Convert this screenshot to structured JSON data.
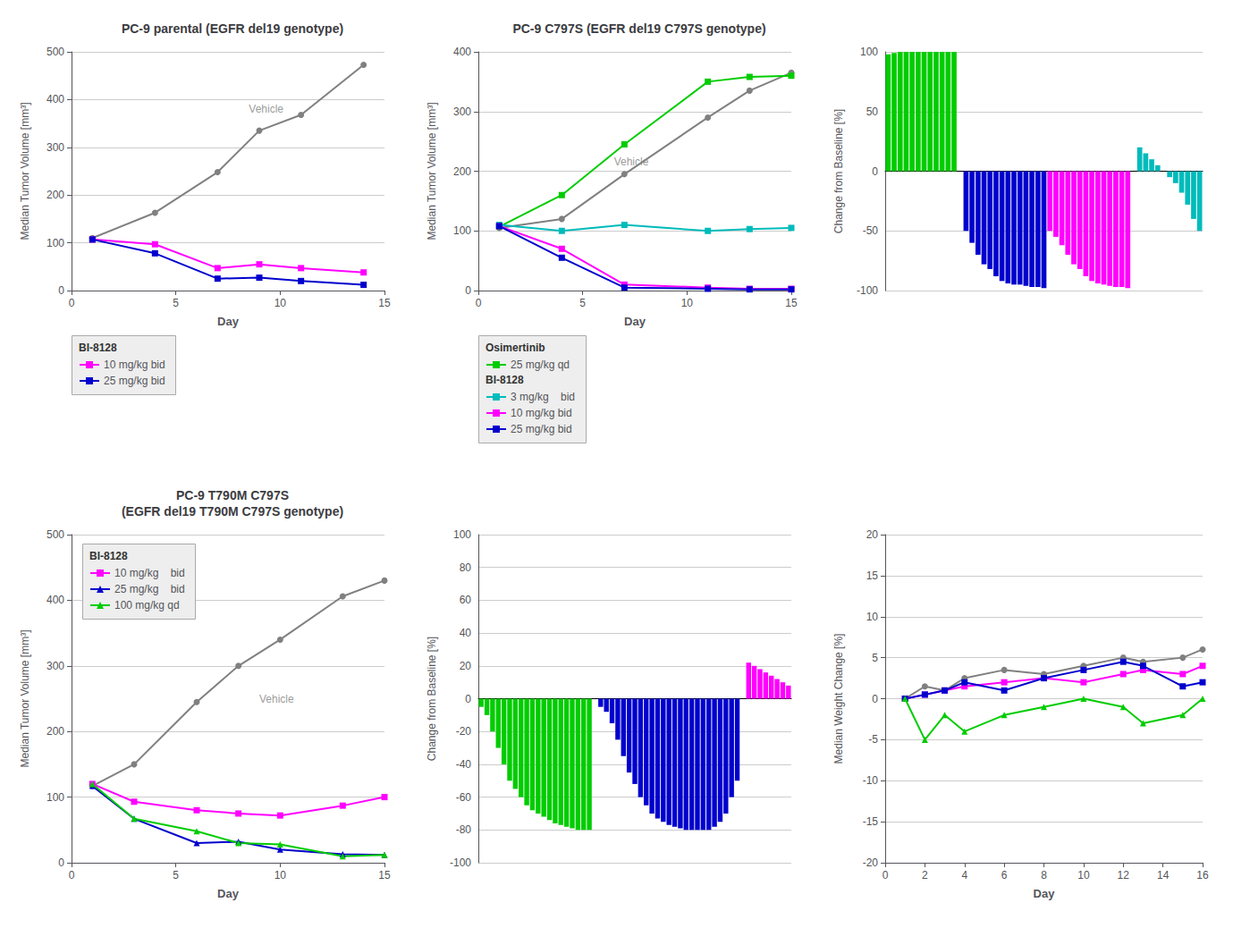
{
  "chart_data": [
    {
      "type": "line",
      "title": "PC-9 parental (EGFR del19 genotype)",
      "x_label": "Day",
      "y_label": "Median Tumor Volume [mm³]",
      "x": [
        1,
        4,
        7,
        9,
        11,
        14
      ],
      "series": [
        {
          "color": "#808080",
          "marker": "circle",
          "values": [
            110,
            163,
            248,
            335,
            368,
            473
          ]
        },
        {
          "name": "10 mg/kg bid",
          "legend_group": "BI-8128",
          "color": "#FF00FF",
          "marker": "square",
          "values": [
            107,
            97,
            47,
            55,
            47,
            38
          ]
        },
        {
          "name": "25 mg/kg bid",
          "legend_group": "BI-8128",
          "color": "#0000CD",
          "marker": "square",
          "values": [
            107,
            78,
            25,
            27,
            20,
            12
          ]
        }
      ],
      "annotations": [
        {
          "text": "Vehicle",
          "x": 8.5,
          "y": 380,
          "color": "#808080"
        }
      ],
      "xlim": [
        0,
        15
      ],
      "xticks": [
        0,
        5,
        10,
        15
      ],
      "ylim": [
        0,
        500
      ],
      "yticks": [
        0,
        100,
        200,
        300,
        400,
        500
      ],
      "grid": true,
      "legend": "below"
    },
    {
      "type": "line",
      "title": "PC-9 C797S (EGFR del19 C797S genotype)",
      "x_label": "Day",
      "y_label": "Median Tumor Volume [mm³]",
      "x": [
        1,
        4,
        7,
        11,
        13,
        15
      ],
      "series": [
        {
          "color": "#808080",
          "marker": "circle",
          "values": [
            105,
            120,
            195,
            290,
            335,
            365
          ]
        },
        {
          "name": "25 mg/kg qd",
          "legend_group": "Osimertinib",
          "color": "#00CC00",
          "marker": "square",
          "values": [
            107,
            160,
            245,
            350,
            358,
            360
          ]
        },
        {
          "name": "3 mg/kg    bid",
          "legend_group": "BI-8128",
          "color": "#00BBBB",
          "marker": "square",
          "values": [
            110,
            100,
            110,
            100,
            103,
            105
          ]
        },
        {
          "name": "10 mg/kg bid",
          "legend_group": "BI-8128",
          "color": "#FF00FF",
          "marker": "square",
          "values": [
            108,
            70,
            10,
            5,
            3,
            3
          ]
        },
        {
          "name": "25 mg/kg bid",
          "legend_group": "BI-8128",
          "color": "#0000CD",
          "marker": "square",
          "values": [
            108,
            55,
            5,
            3,
            2,
            2
          ]
        }
      ],
      "annotations": [
        {
          "text": "Vehicle",
          "x": 6.5,
          "y": 215,
          "color": "#808080"
        }
      ],
      "xlim": [
        0,
        15
      ],
      "xticks": [
        0,
        5,
        10,
        15
      ],
      "ylim": [
        0,
        400
      ],
      "yticks": [
        0,
        100,
        200,
        300,
        400
      ],
      "grid": true,
      "legend": "below"
    },
    {
      "type": "bar",
      "y_label": "Change from Baseline [%]",
      "series": [
        {
          "color": "#00CC00",
          "values": [
            98,
            99,
            100,
            100,
            100,
            100,
            100,
            100,
            100,
            100,
            100,
            100
          ]
        },
        {
          "color": "#0000CD",
          "values": [
            -50,
            -60,
            -70,
            -78,
            -82,
            -88,
            -92,
            -94,
            -95,
            -95,
            -96,
            -97,
            -97,
            -98
          ]
        },
        {
          "color": "#FF00FF",
          "values": [
            -50,
            -55,
            -62,
            -70,
            -78,
            -82,
            -88,
            -92,
            -94,
            -95,
            -96,
            -97,
            -97,
            -98
          ]
        },
        {
          "color": "#00BBBB",
          "values": [
            20,
            15,
            10,
            5,
            0,
            -5,
            -10,
            -18,
            -28,
            -40,
            -50
          ]
        }
      ],
      "ylim": [
        -100,
        100
      ],
      "yticks": [
        -100,
        -50,
        0,
        50,
        100
      ],
      "grid": true,
      "tick_labels": "y"
    },
    {
      "type": "line",
      "title": "PC-9 T790M C797S\n(EGFR del19 T790M C797S genotype)",
      "x_label": "Day",
      "y_label": "Median Tumor Volume [mm³]",
      "x": [
        1,
        3,
        6,
        8,
        10,
        13,
        15
      ],
      "series": [
        {
          "color": "#808080",
          "marker": "circle",
          "values": [
            117,
            150,
            245,
            300,
            340,
            406,
            430
          ]
        },
        {
          "name": "10 mg/kg    bid",
          "legend_group": "BI-8128",
          "color": "#FF00FF",
          "marker": "square",
          "values": [
            120,
            93,
            80,
            75,
            72,
            87,
            100
          ]
        },
        {
          "name": "25 mg/kg    bid",
          "legend_group": "BI-8128",
          "color": "#0000CD",
          "marker": "triangle",
          "values": [
            117,
            67,
            30,
            32,
            20,
            13,
            12
          ]
        },
        {
          "name": "100 mg/kg qd",
          "legend_group": "BI-8128",
          "color": "#00CC00",
          "marker": "triangle",
          "values": [
            120,
            67,
            48,
            30,
            28,
            10,
            12
          ]
        }
      ],
      "annotations": [
        {
          "text": "Vehicle",
          "x": 9,
          "y": 250,
          "color": "#808080"
        }
      ],
      "xlim": [
        0,
        15
      ],
      "xticks": [
        0,
        5,
        10,
        15
      ],
      "ylim": [
        0,
        500
      ],
      "yticks": [
        0,
        100,
        200,
        300,
        400,
        500
      ],
      "grid": true,
      "legend": "upper left"
    },
    {
      "type": "bar",
      "y_label": "Change from Baseline [%]",
      "series": [
        {
          "color": "#00CC00",
          "values": [
            -5,
            -10,
            -20,
            -30,
            -40,
            -50,
            -55,
            -60,
            -65,
            -68,
            -70,
            -72,
            -74,
            -76,
            -77,
            -78,
            -79,
            -80,
            -80,
            -80
          ]
        },
        {
          "color": "#0000CD",
          "values": [
            -5,
            -8,
            -15,
            -25,
            -35,
            -45,
            -52,
            -60,
            -65,
            -70,
            -73,
            -75,
            -77,
            -78,
            -79,
            -80,
            -80,
            -80,
            -80,
            -80,
            -78,
            -75,
            -70,
            -60,
            -50
          ]
        },
        {
          "color": "#FF00FF",
          "values": [
            22,
            20,
            18,
            16,
            14,
            12,
            10,
            8
          ]
        }
      ],
      "ylim": [
        -100,
        100
      ],
      "yticks": [
        -100,
        -80,
        -60,
        -40,
        -20,
        0,
        20,
        40,
        60,
        80,
        100
      ],
      "grid": true,
      "tick_labels": "y"
    },
    {
      "type": "line",
      "x_label": "Day",
      "y_label": "Median Weight Change [%]",
      "x": [
        1,
        2,
        3,
        4,
        6,
        8,
        10,
        12,
        13,
        15,
        16
      ],
      "series": [
        {
          "color": "#808080",
          "marker": "circle",
          "values": [
            0,
            1.5,
            1,
            2.5,
            3.5,
            3,
            4,
            5,
            4.5,
            5,
            6
          ]
        },
        {
          "color": "#FF00FF",
          "marker": "square",
          "values": [
            0,
            0.5,
            1,
            1.5,
            2,
            2.5,
            2,
            3,
            3.5,
            3,
            4
          ]
        },
        {
          "color": "#0000CD",
          "marker": "square",
          "values": [
            0,
            0.5,
            1,
            2,
            1,
            2.5,
            3.5,
            4.5,
            4,
            1.5,
            2
          ]
        },
        {
          "color": "#00CC00",
          "marker": "triangle",
          "values": [
            0,
            -5,
            -2,
            -4,
            -2,
            -1,
            0,
            -1,
            -3,
            -2,
            0
          ]
        }
      ],
      "xlim": [
        0,
        16
      ],
      "xticks": [
        0,
        2,
        4,
        6,
        8,
        10,
        12,
        14,
        16
      ],
      "ylim": [
        -20,
        20
      ],
      "yticks": [
        -20,
        -15,
        -10,
        -5,
        0,
        5,
        10,
        15,
        20
      ],
      "grid": true
    }
  ]
}
